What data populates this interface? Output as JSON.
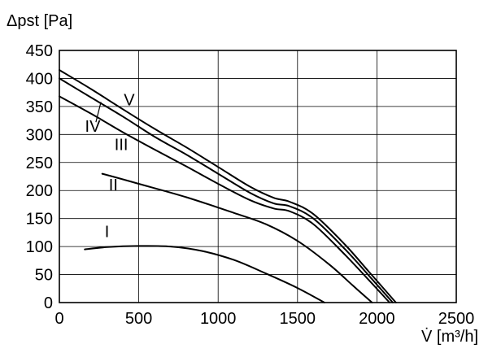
{
  "chart_data": {
    "type": "line",
    "xlabel": "V̇ [m³/h]",
    "ylabel": "Δpst [Pa]",
    "xlim": [
      0,
      2500
    ],
    "ylim": [
      0,
      450
    ],
    "xticks": [
      0,
      500,
      1000,
      1500,
      2000,
      2500
    ],
    "yticks": [
      0,
      50,
      100,
      150,
      200,
      250,
      300,
      350,
      400,
      450
    ],
    "grid": true,
    "series": [
      {
        "name": "I",
        "x": [
          160,
          300,
          500,
          700,
          900,
          1100,
          1300,
          1500,
          1670
        ],
        "y": [
          95,
          99,
          101,
          100,
          92,
          76,
          52,
          26,
          0
        ]
      },
      {
        "name": "II",
        "x": [
          270,
          500,
          800,
          1100,
          1300,
          1500,
          1700,
          1850,
          1970
        ],
        "y": [
          230,
          212,
          188,
          160,
          140,
          110,
          68,
          30,
          0
        ]
      },
      {
        "name": "III",
        "x": [
          0,
          200,
          400,
          600,
          800,
          1000,
          1200,
          1350,
          1450,
          1600,
          1800,
          1950,
          2080
        ],
        "y": [
          368,
          337,
          304,
          273,
          243,
          212,
          183,
          168,
          163,
          140,
          85,
          40,
          0
        ]
      },
      {
        "name": "IV",
        "x": [
          0,
          200,
          400,
          600,
          800,
          1000,
          1200,
          1350,
          1450,
          1600,
          1800,
          1950,
          2100
        ],
        "y": [
          400,
          366,
          332,
          296,
          264,
          230,
          196,
          177,
          172,
          150,
          95,
          48,
          0
        ]
      },
      {
        "name": "V",
        "x": [
          0,
          200,
          400,
          600,
          800,
          1000,
          1200,
          1350,
          1450,
          1600,
          1800,
          1950,
          2120
        ],
        "y": [
          415,
          381,
          345,
          310,
          277,
          242,
          207,
          187,
          180,
          158,
          103,
          55,
          0
        ]
      }
    ],
    "series_labels": [
      {
        "text": "I",
        "x": 300,
        "y": 117
      },
      {
        "text": "II",
        "x": 340,
        "y": 200
      },
      {
        "text": "III",
        "x": 390,
        "y": 272
      },
      {
        "text": "IV",
        "x": 210,
        "y": 305
      },
      {
        "text": "V",
        "x": 440,
        "y": 352
      }
    ]
  }
}
